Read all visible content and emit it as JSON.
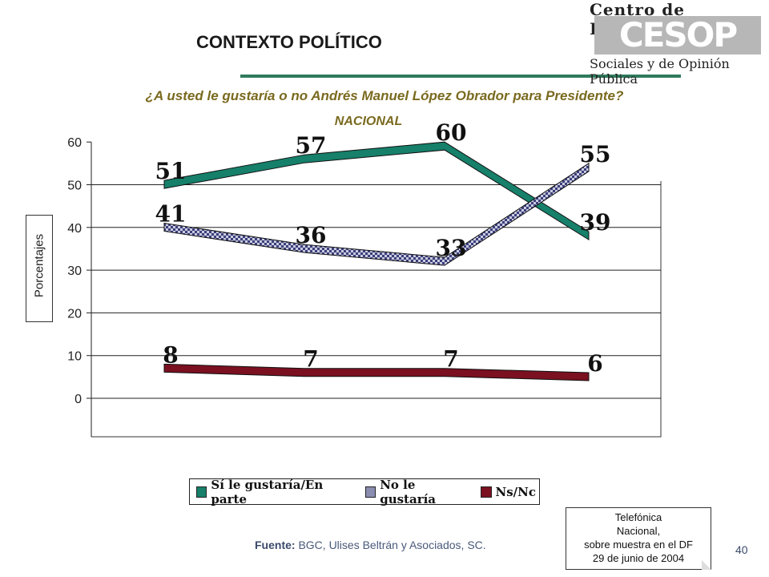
{
  "header": {
    "title": "CONTEXTO POLÍTICO",
    "logo_top": "Centro de Estudios",
    "logo_mark": "CESOP",
    "logo_bottom": "Sociales y de Opinión Pública"
  },
  "question": "¿A usted le gustaría o no Andrés Manuel López Obrador para Presidente?",
  "subtitle": "NACIONAL",
  "chart_data": {
    "type": "line",
    "ylabel": "Porcentajes",
    "ylim": [
      -8,
      60
    ],
    "yticks": [
      "60",
      "50",
      "40",
      "30",
      "20",
      "10",
      "0"
    ],
    "grid": true,
    "legend_position": "bottom",
    "series": [
      {
        "name": "Sí le gustaría/En parte",
        "values": [
          51,
          57,
          60,
          39
        ],
        "labels": [
          "51",
          "57",
          "60",
          "39"
        ],
        "color": "#16806a"
      },
      {
        "name": "No le gustaría",
        "values": [
          41,
          36,
          33,
          55
        ],
        "labels": [
          "41",
          "36",
          "33",
          "55"
        ],
        "color": "#8a8cb0"
      },
      {
        "name": "Ns/Nc",
        "values": [
          8,
          7,
          7,
          6
        ],
        "labels": [
          "8",
          "7",
          "7",
          "6"
        ],
        "color": "#7a1020"
      }
    ]
  },
  "legend": [
    {
      "label": "Sí le gustaría/En parte",
      "color": "#16806a"
    },
    {
      "label": "No le gustaría",
      "color": "#8a8cb0"
    },
    {
      "label": "Ns/Nc",
      "color": "#7a1020"
    }
  ],
  "source": {
    "label": "Fuente:",
    "text": "BGC, Ulises Beltrán y Asociados, SC."
  },
  "note": {
    "line1": "Telefónica",
    "line2": "Nacional,",
    "line3": "sobre muestra en el DF",
    "line4": "29 de junio de 2004"
  },
  "page_number": "40"
}
